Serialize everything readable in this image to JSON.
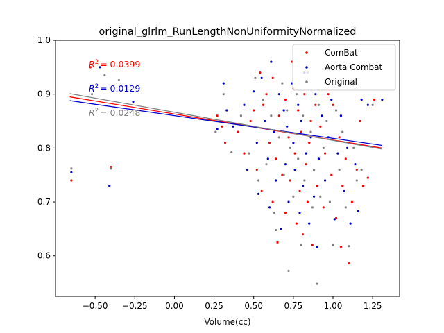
{
  "chart_data": {
    "type": "scatter",
    "title": "original_glrlm_RunLengthNonUniformityNormalized",
    "xlabel": "Volume(cc)",
    "ylabel": "",
    "xlim": [
      -0.75,
      1.42
    ],
    "ylim": [
      0.525,
      1.0
    ],
    "x_ticks": [
      -0.5,
      -0.25,
      0.0,
      0.25,
      0.5,
      0.75,
      1.0,
      1.25
    ],
    "x_tick_labels": [
      "−0.50",
      "−0.25",
      "0.00",
      "0.25",
      "0.50",
      "0.75",
      "1.00",
      "1.25"
    ],
    "y_ticks": [
      0.6,
      0.7,
      0.8,
      0.9,
      1.0
    ],
    "y_tick_labels": [
      "0.6",
      "0.7",
      "0.8",
      "0.9",
      "1.0"
    ],
    "legend": {
      "placement": "top-right",
      "entries": [
        "ComBat",
        "Aorta Combat",
        "Original"
      ]
    },
    "annotations": [
      {
        "label": "R",
        "sup": "2",
        "value": "= 0.0399",
        "color": "#ff0000",
        "x": -0.54,
        "y": 0.955
      },
      {
        "label": "R",
        "sup": "2",
        "value": "= 0.0129",
        "color": "#0000cc",
        "x": -0.54,
        "y": 0.91
      },
      {
        "label": "R",
        "sup": "2",
        "value": "= 0.0248",
        "color": "#808080",
        "x": -0.54,
        "y": 0.865
      }
    ],
    "fit_lines": [
      {
        "series": "ComBat",
        "color": "#ff0000",
        "x": [
          -0.66,
          1.31
        ],
        "y": [
          0.895,
          0.8
        ]
      },
      {
        "series": "Aorta Combat",
        "color": "#0000cc",
        "x": [
          -0.66,
          1.31
        ],
        "y": [
          0.888,
          0.805
        ]
      },
      {
        "series": "Original",
        "color": "#808080",
        "x": [
          -0.66,
          1.31
        ],
        "y": [
          0.901,
          0.798
        ]
      }
    ],
    "series": [
      {
        "name": "ComBat",
        "color": "#ff0000",
        "points": [
          [
            -0.65,
            0.74
          ],
          [
            -0.53,
            0.95
          ],
          [
            -0.4,
            0.765
          ],
          [
            0.27,
            0.86
          ],
          [
            0.3,
            0.84
          ],
          [
            0.32,
            0.81
          ],
          [
            0.4,
            0.83
          ],
          [
            0.44,
            0.79
          ],
          [
            0.48,
            0.85
          ],
          [
            0.5,
            0.87
          ],
          [
            0.52,
            0.76
          ],
          [
            0.54,
            0.94
          ],
          [
            0.55,
            0.72
          ],
          [
            0.56,
            0.88
          ],
          [
            0.58,
            0.9
          ],
          [
            0.6,
            0.81
          ],
          [
            0.62,
            0.7
          ],
          [
            0.62,
            0.93
          ],
          [
            0.64,
            0.78
          ],
          [
            0.65,
            0.625
          ],
          [
            0.66,
            0.86
          ],
          [
            0.68,
            0.75
          ],
          [
            0.7,
            0.89
          ],
          [
            0.7,
            0.68
          ],
          [
            0.72,
            0.82
          ],
          [
            0.73,
            0.74
          ],
          [
            0.74,
            0.96
          ],
          [
            0.75,
            0.91
          ],
          [
            0.76,
            0.79
          ],
          [
            0.77,
            0.66
          ],
          [
            0.78,
            0.87
          ],
          [
            0.79,
            0.72
          ],
          [
            0.8,
            0.83
          ],
          [
            0.81,
            0.64
          ],
          [
            0.82,
            0.9
          ],
          [
            0.83,
            0.77
          ],
          [
            0.84,
            0.7
          ],
          [
            0.85,
            0.81
          ],
          [
            0.86,
            0.85
          ],
          [
            0.87,
            0.62
          ],
          [
            0.88,
            0.76
          ],
          [
            0.89,
            0.88
          ],
          [
            0.9,
            0.73
          ],
          [
            0.92,
            0.84
          ],
          [
            0.94,
            0.69
          ],
          [
            0.95,
            0.79
          ],
          [
            0.97,
            0.9
          ],
          [
            0.99,
            0.75
          ],
          [
            1.0,
            0.88
          ],
          [
            1.02,
            0.67
          ],
          [
            1.04,
            0.82
          ],
          [
            1.05,
            0.617
          ],
          [
            1.06,
            0.73
          ],
          [
            1.08,
            0.78
          ],
          [
            1.1,
            0.586
          ],
          [
            1.12,
            0.7
          ],
          [
            1.15,
            0.76
          ],
          [
            1.17,
            0.85
          ],
          [
            1.19,
            0.73
          ],
          [
            1.22,
            0.745
          ],
          [
            1.26,
            0.89
          ]
        ]
      },
      {
        "name": "Aorta Combat",
        "color": "#0000cc",
        "points": [
          [
            -0.65,
            0.755
          ],
          [
            -0.47,
            0.95
          ],
          [
            -0.41,
            0.73
          ],
          [
            -0.26,
            0.886
          ],
          [
            0.27,
            0.835
          ],
          [
            0.31,
            0.92
          ],
          [
            0.33,
            0.87
          ],
          [
            0.37,
            0.84
          ],
          [
            0.44,
            0.88
          ],
          [
            0.46,
            0.76
          ],
          [
            0.5,
            0.905
          ],
          [
            0.52,
            0.81
          ],
          [
            0.53,
            0.715
          ],
          [
            0.55,
            0.93
          ],
          [
            0.57,
            0.85
          ],
          [
            0.59,
            0.78
          ],
          [
            0.6,
            0.69
          ],
          [
            0.61,
            0.96
          ],
          [
            0.63,
            0.83
          ],
          [
            0.64,
            0.74
          ],
          [
            0.66,
            0.9
          ],
          [
            0.67,
            0.65
          ],
          [
            0.69,
            0.87
          ],
          [
            0.7,
            0.77
          ],
          [
            0.71,
            0.84
          ],
          [
            0.72,
            0.7
          ],
          [
            0.74,
            0.92
          ],
          [
            0.75,
            0.81
          ],
          [
            0.76,
            0.76
          ],
          [
            0.78,
            0.88
          ],
          [
            0.79,
            0.68
          ],
          [
            0.8,
            0.85
          ],
          [
            0.81,
            0.73
          ],
          [
            0.82,
            0.94
          ],
          [
            0.83,
            0.79
          ],
          [
            0.85,
            0.66
          ],
          [
            0.86,
            0.82
          ],
          [
            0.88,
            0.71
          ],
          [
            0.89,
            0.9
          ],
          [
            0.9,
            0.616
          ],
          [
            0.91,
            0.78
          ],
          [
            0.93,
            0.86
          ],
          [
            0.95,
            0.74
          ],
          [
            0.97,
            0.82
          ],
          [
            0.99,
            0.89
          ],
          [
            1.01,
            0.668
          ],
          [
            1.03,
            0.79
          ],
          [
            1.05,
            0.86
          ],
          [
            1.07,
            0.72
          ],
          [
            1.09,
            0.8
          ],
          [
            1.11,
            0.66
          ],
          [
            1.14,
            0.77
          ],
          [
            1.16,
            0.683
          ],
          [
            1.18,
            0.89
          ],
          [
            1.22,
            0.88
          ],
          [
            1.31,
            0.89
          ]
        ]
      },
      {
        "name": "Original",
        "color": "#808080",
        "points": [
          [
            -0.65,
            0.762
          ],
          [
            -0.52,
            0.9
          ],
          [
            -0.44,
            0.935
          ],
          [
            -0.4,
            0.762
          ],
          [
            -0.35,
            0.926
          ],
          [
            0.26,
            0.83
          ],
          [
            0.31,
            0.9
          ],
          [
            0.36,
            0.792
          ],
          [
            0.42,
            0.86
          ],
          [
            0.47,
            0.79
          ],
          [
            0.51,
            0.93
          ],
          [
            0.53,
            0.74
          ],
          [
            0.56,
            0.89
          ],
          [
            0.58,
            0.77
          ],
          [
            0.61,
            0.86
          ],
          [
            0.63,
            0.68
          ],
          [
            0.64,
            0.648
          ],
          [
            0.66,
            0.82
          ],
          [
            0.68,
            0.92
          ],
          [
            0.69,
            0.75
          ],
          [
            0.71,
            0.87
          ],
          [
            0.72,
            0.572
          ],
          [
            0.73,
            0.8
          ],
          [
            0.75,
            0.71
          ],
          [
            0.77,
            0.9
          ],
          [
            0.78,
            0.78
          ],
          [
            0.8,
            0.62
          ],
          [
            0.81,
            0.86
          ],
          [
            0.82,
            0.74
          ],
          [
            0.84,
            0.94
          ],
          [
            0.86,
            0.83
          ],
          [
            0.87,
            0.69
          ],
          [
            0.88,
            0.76
          ],
          [
            0.9,
            0.548
          ],
          [
            0.91,
            0.88
          ],
          [
            0.92,
            0.71
          ],
          [
            0.94,
            0.8
          ],
          [
            0.96,
            0.85
          ],
          [
            0.98,
            0.7
          ],
          [
            1.0,
            0.62
          ],
          [
            1.02,
            0.87
          ],
          [
            1.04,
            0.76
          ],
          [
            1.06,
            0.83
          ],
          [
            1.08,
            0.69
          ],
          [
            1.1,
            0.618
          ],
          [
            1.13,
            0.8
          ],
          [
            1.15,
            0.74
          ],
          [
            1.18,
            0.76
          ],
          [
            1.25,
            0.88
          ]
        ]
      }
    ]
  }
}
